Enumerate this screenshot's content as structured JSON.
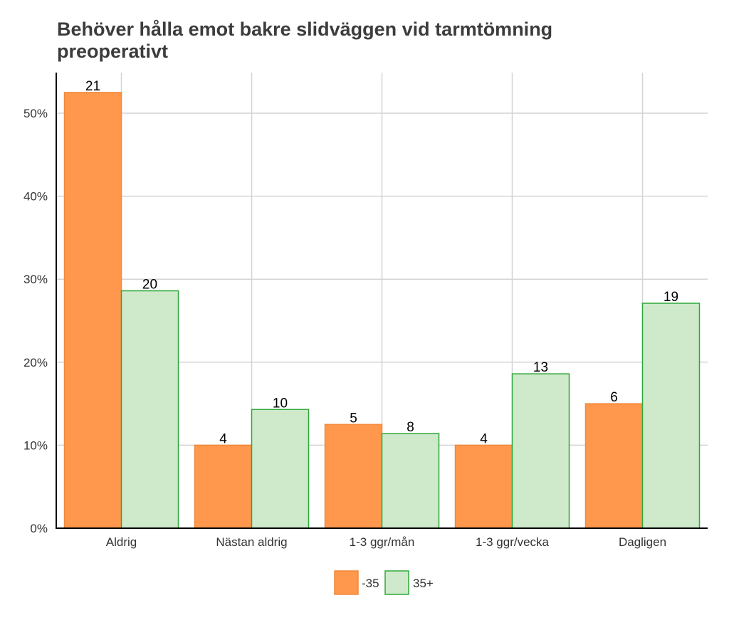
{
  "chart_data": {
    "type": "bar",
    "title_lines": [
      "Behöver hålla emot bakre slidväggen vid tarmtömning",
      "preoperativt"
    ],
    "categories": [
      "Aldrig",
      "Nästan aldrig",
      "1-3 ggr/mån",
      "1-3 ggr/vecka",
      "Dagligen"
    ],
    "series": [
      {
        "name": "-35",
        "color": "#FF974C",
        "stroke": "#F08A3C",
        "values": [
          52.5,
          10.0,
          12.5,
          10.0,
          15.0
        ],
        "labels": [
          "21",
          "4",
          "5",
          "4",
          "6"
        ]
      },
      {
        "name": "35+",
        "color": "#CFE9CB",
        "stroke": "#2EA83A",
        "values": [
          28.6,
          14.3,
          11.4,
          18.6,
          27.1
        ],
        "labels": [
          "20",
          "10",
          "8",
          "13",
          "19"
        ]
      }
    ],
    "y_ticks": [
      "0%",
      "10%",
      "20%",
      "30%",
      "40%",
      "50%"
    ],
    "ylim": [
      0,
      55
    ],
    "grid": true,
    "legend_position": "bottom"
  }
}
